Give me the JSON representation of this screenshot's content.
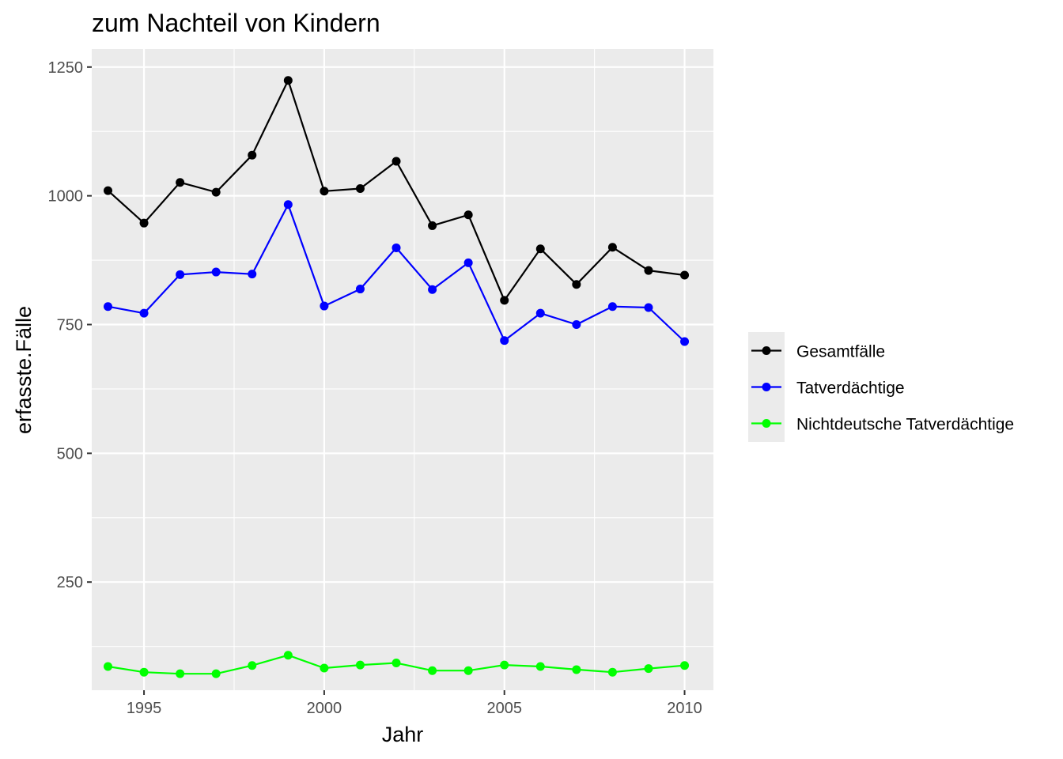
{
  "chart_data": {
    "type": "line",
    "title": "zum Nachteil von Kindern",
    "xlabel": "Jahr",
    "ylabel": "erfasste.Fälle",
    "x": [
      1994,
      1995,
      1996,
      1997,
      1998,
      1999,
      2000,
      2001,
      2002,
      2003,
      2004,
      2005,
      2006,
      2007,
      2008,
      2009,
      2010
    ],
    "xlim": [
      1993.55,
      2010.8
    ],
    "ylim": [
      40,
      1285
    ],
    "x_ticks": [
      1995,
      2000,
      2005,
      2010
    ],
    "x_tick_labels": [
      "1995",
      "2000",
      "2005",
      "2010"
    ],
    "y_ticks": [
      250,
      500,
      750,
      1000,
      1250
    ],
    "y_tick_labels": [
      "250",
      "500",
      "750",
      "1000",
      "1250"
    ],
    "grid": true,
    "legend_position": "right",
    "series": [
      {
        "name": "Gesamtfälle",
        "color": "#000000",
        "values": [
          1010,
          947,
          1026,
          1007,
          1079,
          1224,
          1009,
          1014,
          1067,
          942,
          963,
          797,
          897,
          828,
          900,
          855,
          846
        ]
      },
      {
        "name": "Tatverdächtige",
        "color": "#0000FF",
        "values": [
          785,
          772,
          847,
          852,
          848,
          983,
          786,
          819,
          899,
          818,
          870,
          719,
          772,
          750,
          785,
          783,
          717
        ]
      },
      {
        "name": "Nichtdeutsche Tatverdächtige",
        "color": "#00FF00",
        "values": [
          86,
          75,
          72,
          72,
          88,
          108,
          83,
          89,
          93,
          78,
          78,
          89,
          86,
          80,
          75,
          82,
          88
        ]
      }
    ]
  }
}
